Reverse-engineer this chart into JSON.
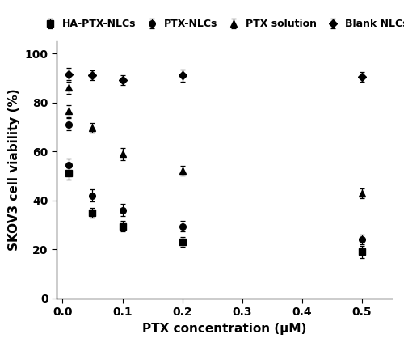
{
  "xlabel": "PTX concentration (μM)",
  "ylabel": "SKOV3 cell viability (%)",
  "xlim": [
    -0.01,
    0.55
  ],
  "ylim": [
    0,
    105
  ],
  "xticks": [
    0.0,
    0.1,
    0.2,
    0.3,
    0.4,
    0.5
  ],
  "yticks": [
    0,
    20,
    40,
    60,
    80,
    100
  ],
  "HA_PTX_NLCs": {
    "x": [
      0.01,
      0.05,
      0.1,
      0.2,
      0.5
    ],
    "y": [
      51.0,
      35.0,
      29.5,
      23.0,
      19.0
    ],
    "yerr": [
      2.5,
      2.0,
      2.0,
      2.0,
      2.5
    ],
    "marker": "s",
    "label": "HA-PTX-NLCs"
  },
  "PTX_NLCs": {
    "x": [
      0.01,
      0.05,
      0.1,
      0.2,
      0.5
    ],
    "y": [
      54.5,
      42.0,
      36.0,
      29.5,
      24.0
    ],
    "yerr": [
      2.5,
      2.5,
      2.5,
      2.0,
      2.0
    ],
    "marker": "o",
    "label": "PTX-NLCs"
  },
  "PTX_NLCs_high": {
    "x": [
      0.01
    ],
    "y": [
      71.0
    ],
    "yerr": [
      2.5
    ]
  },
  "PTX_solution": {
    "x": [
      0.01,
      0.05,
      0.1,
      0.2,
      0.5
    ],
    "y": [
      86.0,
      69.5,
      59.0,
      52.0,
      43.0
    ],
    "yerr": [
      2.5,
      2.0,
      2.5,
      2.0,
      2.0
    ],
    "marker": "^",
    "label": "PTX solution"
  },
  "PTX_solution_high": {
    "x": [
      0.01
    ],
    "y": [
      76.5
    ],
    "yerr": [
      2.5
    ]
  },
  "Blank_NLCs": {
    "x": [
      0.01,
      0.05,
      0.1,
      0.2,
      0.5
    ],
    "y": [
      91.5,
      91.0,
      89.0,
      91.0,
      90.5
    ],
    "yerr": [
      2.5,
      2.0,
      2.0,
      2.5,
      2.0
    ],
    "marker": "D",
    "label": "Blank NLCs"
  },
  "figsize": [
    5.0,
    4.24
  ],
  "dpi": 100
}
